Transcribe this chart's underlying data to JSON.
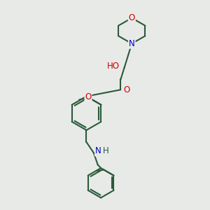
{
  "bg_color": "#e8eae8",
  "bond_color": "#2a5a3a",
  "O_color": "#cc0000",
  "N_color": "#0000cc",
  "line_width": 1.5,
  "font_size": 8.5,
  "fig_w": 3.0,
  "fig_h": 3.0,
  "dpi": 100,
  "xlim": [
    0,
    10
  ],
  "ylim": [
    0,
    10
  ]
}
